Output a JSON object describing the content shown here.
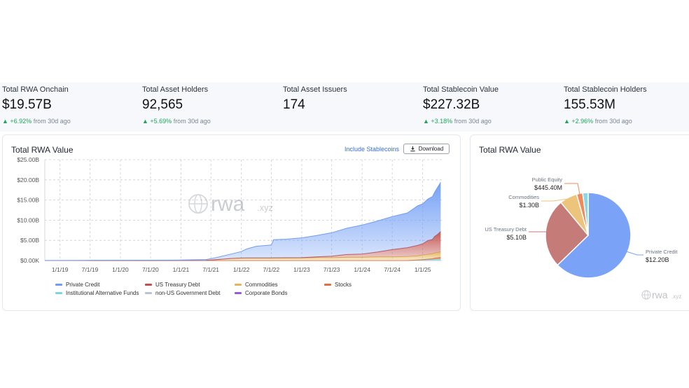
{
  "stats": [
    {
      "label": "Total RWA Onchain",
      "value": "$19.57B",
      "change": "+6.92%",
      "suffix": "from 30d ago"
    },
    {
      "label": "Total Asset Holders",
      "value": "92,565",
      "change": "+5.69%",
      "suffix": "from 30d ago"
    },
    {
      "label": "Total Asset Issuers",
      "value": "174"
    },
    {
      "label": "Total Stablecoin Value",
      "value": "$227.32B",
      "change": "+3.18%",
      "suffix": "from 30d ago"
    },
    {
      "label": "Total Stablecoin Holders",
      "value": "155.53M",
      "change": "+2.96%",
      "suffix": "from 30d ago"
    }
  ],
  "colors": {
    "accent": "#3a6fd8",
    "up": "#22a55a"
  },
  "area_card": {
    "title": "Total RWA Value",
    "include_label": "Include Stablecoins",
    "download_label": "Download",
    "watermark": "rwa",
    "watermark_suffix": ".xyz"
  },
  "pie_card": {
    "title": "Total RWA Value",
    "watermark": "rwa",
    "watermark_suffix": ".xyz"
  },
  "chart_data": [
    {
      "type": "area",
      "stacked": true,
      "title": "Total RWA Value",
      "ylim": [
        0,
        25
      ],
      "y_ticks": [
        "$0.00K",
        "$5.00B",
        "$10.00B",
        "$15.00B",
        "$20.00B",
        "$25.00B"
      ],
      "x_ticks": [
        "1/1/19",
        "7/1/19",
        "1/1/20",
        "7/1/20",
        "1/1/21",
        "7/1/21",
        "1/1/22",
        "7/1/22",
        "1/1/23",
        "7/1/23",
        "1/1/24",
        "7/1/24",
        "1/1/25"
      ],
      "x_range": [
        "2018-10-01",
        "2025-05-01"
      ],
      "grid": true,
      "legend_position": "bottom",
      "dates": [
        "2018-10-01",
        "2019-06-01",
        "2020-06-01",
        "2021-01-01",
        "2021-06-01",
        "2021-08-01",
        "2021-11-01",
        "2022-01-01",
        "2022-02-01",
        "2022-04-01",
        "2022-07-01",
        "2022-07-15",
        "2022-10-01",
        "2023-01-01",
        "2023-04-01",
        "2023-07-01",
        "2023-10-01",
        "2024-01-01",
        "2024-04-01",
        "2024-07-01",
        "2024-10-01",
        "2024-12-01",
        "2025-01-01",
        "2025-02-01",
        "2025-03-01",
        "2025-03-15",
        "2025-04-01",
        "2025-04-20"
      ],
      "series": [
        {
          "name": "Private Credit",
          "color": "#6f9cf5",
          "values": [
            0.02,
            0.05,
            0.08,
            0.12,
            0.2,
            0.5,
            1.1,
            1.6,
            2.2,
            2.9,
            3.2,
            4.5,
            4.6,
            4.9,
            5.3,
            5.8,
            6.5,
            7.2,
            7.7,
            8.2,
            8.6,
            9.8,
            9.9,
            10.3,
            10.6,
            11.0,
            11.6,
            12.2
          ]
        },
        {
          "name": "US Treasury Debt",
          "color": "#c0504d",
          "values": [
            0,
            0,
            0,
            0,
            0,
            0.01,
            0.02,
            0.03,
            0.04,
            0.05,
            0.06,
            0.08,
            0.1,
            0.12,
            0.2,
            0.4,
            0.7,
            0.8,
            1.2,
            1.8,
            2.2,
            2.6,
            2.8,
            3.4,
            3.6,
            4.1,
            4.5,
            5.1
          ]
        },
        {
          "name": "Commodities",
          "color": "#e3b55c",
          "values": [
            0,
            0,
            0,
            0.01,
            0.05,
            0.2,
            0.5,
            0.6,
            0.6,
            0.6,
            0.6,
            0.6,
            0.6,
            0.6,
            0.7,
            0.7,
            0.8,
            0.8,
            0.9,
            0.9,
            1.0,
            1.0,
            1.1,
            1.2,
            1.2,
            1.3,
            1.3,
            1.3
          ]
        },
        {
          "name": "Stocks",
          "color": "#e0703c",
          "values": [
            0,
            0,
            0,
            0,
            0,
            0,
            0,
            0,
            0,
            0,
            0,
            0,
            0,
            0,
            0,
            0,
            0,
            0,
            0,
            0,
            0,
            0.05,
            0.1,
            0.15,
            0.2,
            0.3,
            0.35,
            0.4
          ]
        },
        {
          "name": "Institutional Alternative Funds",
          "color": "#7ad6e3",
          "values": [
            0,
            0,
            0,
            0,
            0,
            0,
            0,
            0,
            0,
            0,
            0,
            0,
            0,
            0,
            0,
            0,
            0,
            0,
            0,
            0,
            0,
            0.1,
            0.15,
            0.2,
            0.25,
            0.3,
            0.35,
            0.4
          ]
        },
        {
          "name": "non-US Government Debt",
          "color": "#b9c4d2",
          "values": [
            0,
            0,
            0,
            0,
            0,
            0,
            0,
            0,
            0,
            0,
            0,
            0,
            0,
            0,
            0,
            0,
            0,
            0,
            0,
            0,
            0,
            0,
            0,
            0,
            0,
            0,
            0,
            0
          ]
        },
        {
          "name": "Corporate Bonds",
          "color": "#9b59d6",
          "values": [
            0,
            0,
            0,
            0,
            0,
            0,
            0,
            0,
            0,
            0,
            0,
            0,
            0,
            0,
            0,
            0,
            0,
            0,
            0,
            0,
            0,
            0,
            0,
            0,
            0,
            0,
            0,
            0
          ]
        }
      ]
    },
    {
      "type": "pie",
      "title": "Total RWA Value",
      "slices": [
        {
          "name": "Private Credit",
          "label": "$12.20B",
          "value": 12.2,
          "color": "#7aa3f7"
        },
        {
          "name": "US Treasury Debt",
          "label": "$5.10B",
          "value": 5.1,
          "color": "#c57b78"
        },
        {
          "name": "Commodities",
          "label": "$1.30B",
          "value": 1.3,
          "color": "#edc47b"
        },
        {
          "name": "Public Equity",
          "label": "$445.40M",
          "value": 0.4454,
          "color": "#f08a5e"
        },
        {
          "name": "",
          "label": "",
          "value": 0.4,
          "color": "#8ad8e3"
        }
      ]
    }
  ]
}
